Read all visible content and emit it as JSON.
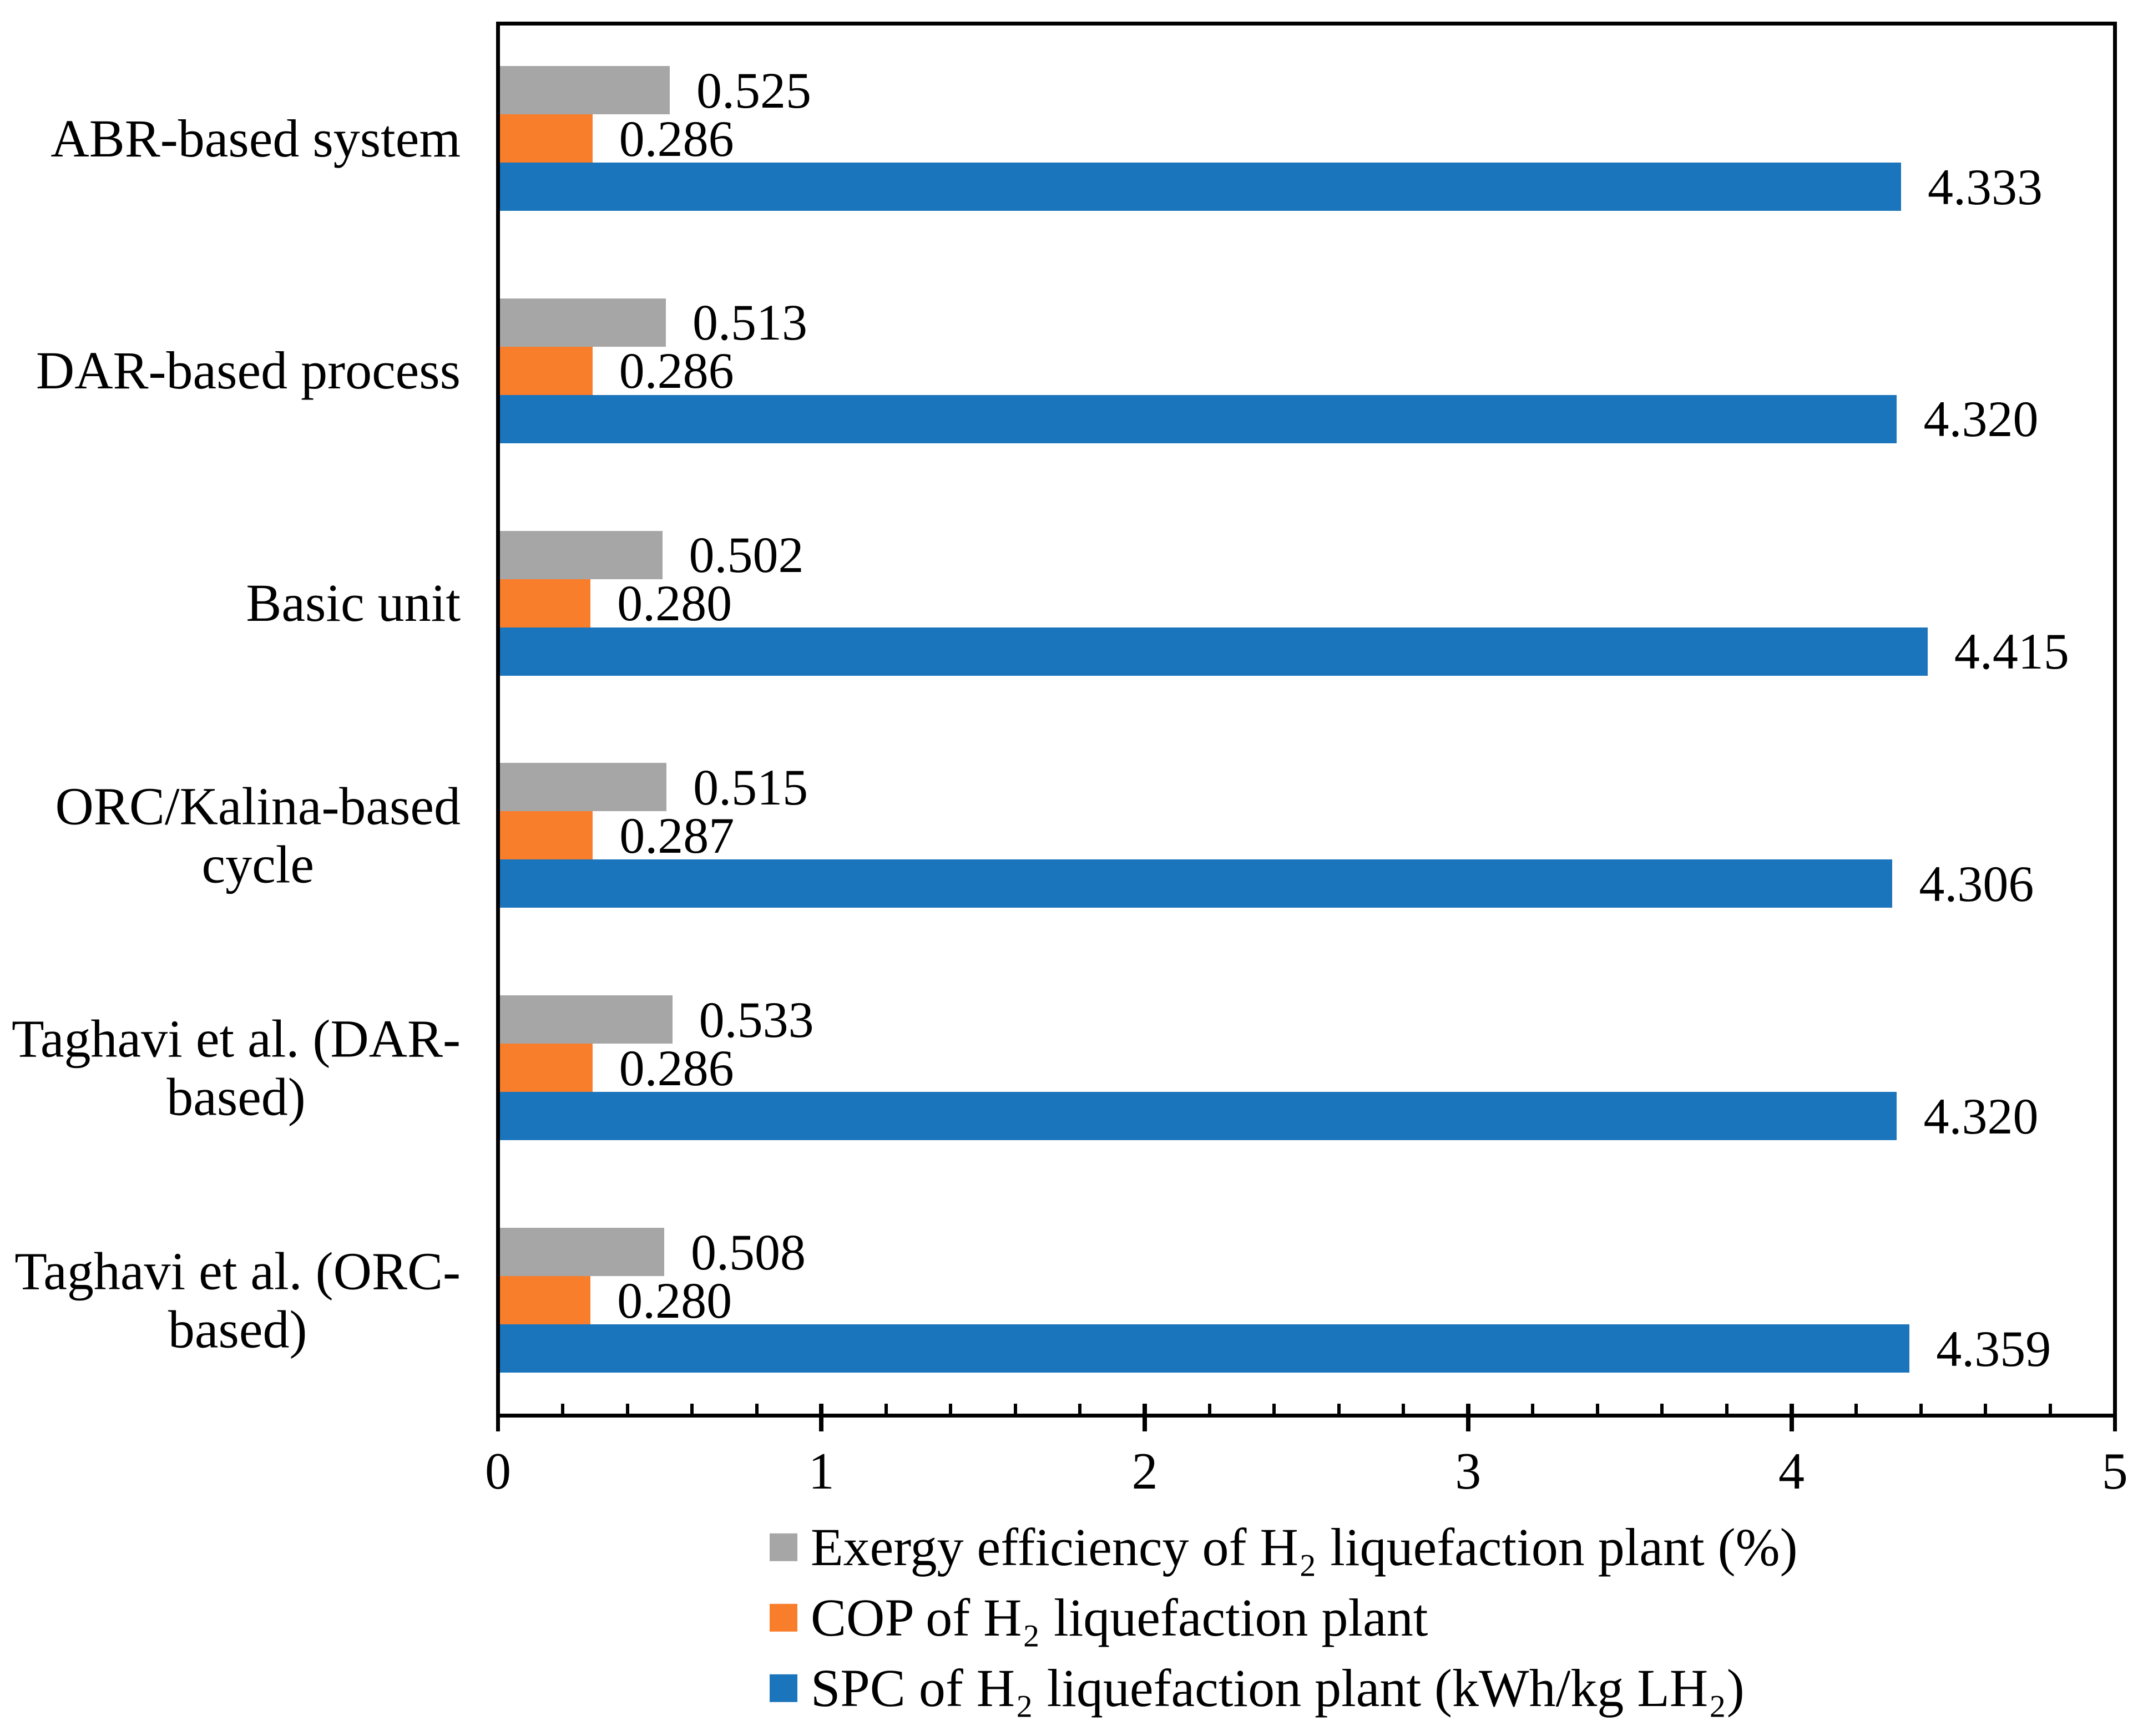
{
  "chart_data": {
    "type": "bar",
    "orientation": "horizontal",
    "title": "",
    "categories": [
      "ABR-based system",
      "DAR-based process",
      "Basic unit",
      "ORC/Kalina-based\ncycle",
      "Taghavi et al. (DAR-\nbased)",
      "Taghavi et al. (ORC-\nbased)"
    ],
    "series": [
      {
        "name": "Exergy efficiency of H₂ liquefaction plant (%)",
        "color": "#A6A6A6",
        "values": [
          0.525,
          0.513,
          0.502,
          0.515,
          0.533,
          0.508
        ],
        "value_labels": [
          "0.525",
          "0.513",
          "0.502",
          "0.515",
          "0.533",
          "0.508"
        ]
      },
      {
        "name": "COP of H₂ liquefaction plant",
        "color": "#F97E2B",
        "values": [
          0.286,
          0.286,
          0.28,
          0.287,
          0.286,
          0.28
        ],
        "value_labels": [
          "0.286",
          "0.286",
          "0.280",
          "0.287",
          "0.286",
          "0.280"
        ]
      },
      {
        "name": "SPC of H₂ liquefaction plant (kWh/kg LH₂)",
        "color": "#1B75BC",
        "values": [
          4.333,
          4.32,
          4.415,
          4.306,
          4.32,
          4.359
        ],
        "value_labels": [
          "4.333",
          "4.320",
          "4.415",
          "4.306",
          "4.320",
          "4.359"
        ]
      }
    ],
    "x_axis": {
      "min": 0,
      "max": 5,
      "major_unit": 1,
      "minor_unit": 0.2,
      "tick_labels": [
        "0",
        "1",
        "2",
        "3",
        "4",
        "5"
      ]
    },
    "grid": false,
    "legend_position": "bottom-center",
    "axis_color": "#000000",
    "text_color": "#000000",
    "background_color": "#FFFFFF"
  }
}
